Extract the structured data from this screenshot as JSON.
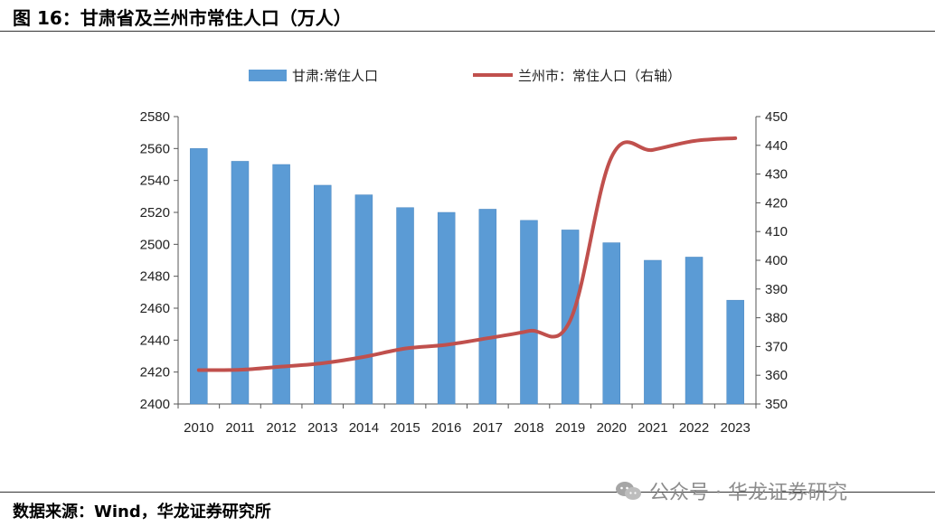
{
  "header": {
    "title": "图 16：甘肃省及兰州市常住人口（万人）"
  },
  "footer": {
    "source": "数据来源：Wind，华龙证券研究所",
    "watermark": "公众号 · 华龙证券研究"
  },
  "chart_data": {
    "type": "bar+line",
    "categories": [
      "2010",
      "2011",
      "2012",
      "2013",
      "2014",
      "2015",
      "2016",
      "2017",
      "2018",
      "2019",
      "2020",
      "2021",
      "2022",
      "2023"
    ],
    "series": [
      {
        "name": "甘肃:常住人口",
        "type": "bar",
        "axis": "left",
        "color": "#5b9bd5",
        "values": [
          2560,
          2552,
          2550,
          2537,
          2531,
          2523,
          2520,
          2522,
          2515,
          2509,
          2501,
          2490,
          2492,
          2465
        ]
      },
      {
        "name": "兰州市：常住人口（右轴）",
        "type": "line",
        "axis": "right",
        "color": "#c0504d",
        "values": [
          361.8,
          361.9,
          363.0,
          364.2,
          366.4,
          369.3,
          370.6,
          372.9,
          375.4,
          379.1,
          435.9,
          438.4,
          441.5,
          442.5
        ]
      }
    ],
    "yleft": {
      "min": 2400,
      "max": 2580,
      "step": 20
    },
    "yright": {
      "min": 350,
      "max": 450,
      "step": 10
    },
    "legend_position": "top",
    "grid": false
  }
}
